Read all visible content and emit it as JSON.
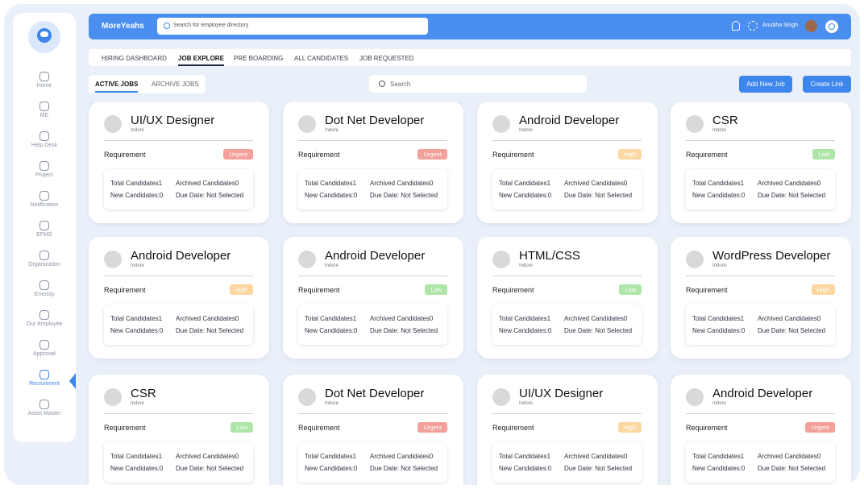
{
  "sidebar": {
    "items": [
      {
        "label": "Home"
      },
      {
        "label": "ME"
      },
      {
        "label": "Help Desk"
      },
      {
        "label": "Project"
      },
      {
        "label": "Notification"
      },
      {
        "label": "EFMS"
      },
      {
        "label": "Organization"
      },
      {
        "label": "Emossy"
      },
      {
        "label": "Our Employee"
      },
      {
        "label": "Approval"
      },
      {
        "label": "Recruitment",
        "active": true
      },
      {
        "label": "Asset Master"
      }
    ]
  },
  "header": {
    "brand": "MoreYeahs",
    "search_placeholder": "Search for employee directory",
    "user": "Anubha Singh"
  },
  "tabs": [
    {
      "label": "HIRING DASHBOARD"
    },
    {
      "label": "JOB EXPLORE",
      "active": true
    },
    {
      "label": "PRE BOARDING"
    },
    {
      "label": "ALL CANDIDATES"
    },
    {
      "label": "JOB REQUESTED"
    }
  ],
  "subtabs": [
    {
      "label": "ACTIVE JOBS",
      "active": true
    },
    {
      "label": "ARCHIVE JOBS"
    }
  ],
  "job_search_placeholder": "Search",
  "buttons": [
    "Add New Job",
    "Create Link"
  ],
  "jobs": [
    {
      "title": "UI/UX Designer",
      "location": "Indore",
      "requirement": "Requirement",
      "priority": "Urgent",
      "priority_color": "#f4a09a",
      "total": "Total Candidates1",
      "archived": "Archived Candidates0",
      "new": "New Candidates:0",
      "due": "Due Date: Not Selected"
    },
    {
      "title": "Dot Net Developer",
      "location": "Indore",
      "requirement": "Requirement",
      "priority": "Urgent",
      "priority_color": "#f4a09a",
      "total": "Total Candidates1",
      "archived": "Archived Candidates0",
      "new": "New Candidates:0",
      "due": "Due Date: Not Selected"
    },
    {
      "title": "Android Developer",
      "location": "Indore",
      "requirement": "Requirement",
      "priority": "High",
      "priority_color": "#fcd7a1",
      "total": "Total Candidates1",
      "archived": "Archived Candidates0",
      "new": "New Candidates:0",
      "due": "Due Date: Not Selected"
    },
    {
      "title": "CSR",
      "location": "Indore",
      "requirement": "Requirement",
      "priority": "Low",
      "priority_color": "#aee6a8",
      "total": "Total Candidates1",
      "archived": "Archived Candidates0",
      "new": "New Candidates:0",
      "due": "Due Date: Not Selected"
    },
    {
      "title": "Android Developer",
      "location": "Indore",
      "requirement": "Requirement",
      "priority": "High",
      "priority_color": "#fcd7a1",
      "total": "Total Candidates1",
      "archived": "Archived Candidates0",
      "new": "New Candidates:0",
      "due": "Due Date: Not Selected"
    },
    {
      "title": "Android Developer",
      "location": "Indore",
      "requirement": "Requirement",
      "priority": "Low",
      "priority_color": "#aee6a8",
      "total": "Total Candidates1",
      "archived": "Archived Candidates0",
      "new": "New Candidates:0",
      "due": "Due Date: Not Selected"
    },
    {
      "title": "HTML/CSS",
      "location": "Indore",
      "requirement": "Requirement",
      "priority": "Low",
      "priority_color": "#aee6a8",
      "total": "Total Candidates1",
      "archived": "Archived Candidates0",
      "new": "New Candidates:0",
      "due": "Due Date: Not Selected"
    },
    {
      "title": "WordPress Developer",
      "location": "Indore",
      "requirement": "Requirement",
      "priority": "High",
      "priority_color": "#fcd7a1",
      "total": "Total Candidates1",
      "archived": "Archived Candidates0",
      "new": "New Candidates:0",
      "due": "Due Date: Not Selected"
    },
    {
      "title": "CSR",
      "location": "Indore",
      "requirement": "Requirement",
      "priority": "Low",
      "priority_color": "#aee6a8",
      "total": "Total Candidates1",
      "archived": "Archived Candidates0",
      "new": "New Candidates:0",
      "due": "Due Date: Not Selected"
    },
    {
      "title": "Dot Net Developer",
      "location": "Indore",
      "requirement": "Requirement",
      "priority": "Urgent",
      "priority_color": "#f4a09a",
      "total": "Total Candidates1",
      "archived": "Archived Candidates0",
      "new": "New Candidates:0",
      "due": "Due Date: Not Selected"
    },
    {
      "title": "UI/UX Designer",
      "location": "Indore",
      "requirement": "Requirement",
      "priority": "High",
      "priority_color": "#fcd7a1",
      "total": "Total Candidates1",
      "archived": "Archived Candidates0",
      "new": "New Candidates:0",
      "due": "Due Date: Not Selected"
    },
    {
      "title": "Android Developer",
      "location": "Indore",
      "requirement": "Requirement",
      "priority": "Urgent",
      "priority_color": "#f4a09a",
      "total": "Total Candidates1",
      "archived": "Archived Candidates0",
      "new": "New Candidates:0",
      "due": "Due Date: Not Selected"
    }
  ]
}
